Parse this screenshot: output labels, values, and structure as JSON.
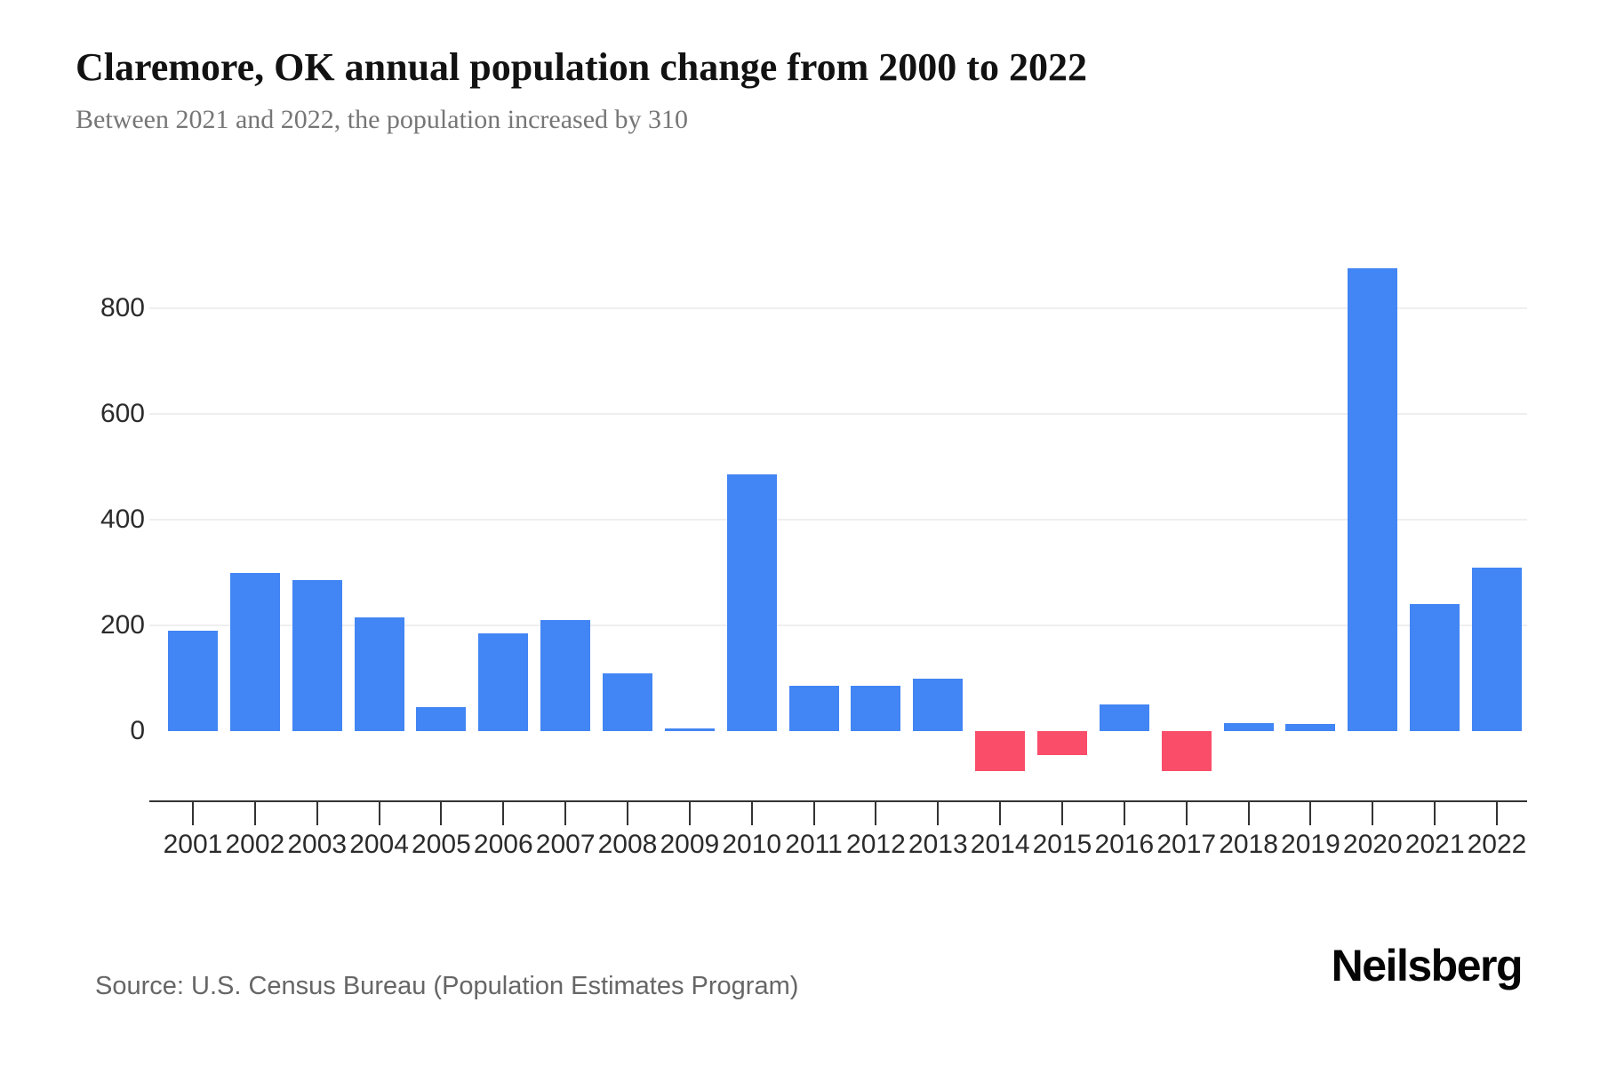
{
  "header": {
    "title": "Claremore, OK annual population change from 2000 to 2022",
    "subtitle": "Between 2021 and 2022, the population increased by 310"
  },
  "footer": {
    "source": "Source: U.S. Census Bureau (Population Estimates Program)",
    "brand": "Neilsberg"
  },
  "chart_data": {
    "type": "bar",
    "title": "Claremore, OK annual population change from 2000 to 2022",
    "subtitle": "Between 2021 and 2022, the population increased by 310",
    "categories": [
      "2001",
      "2002",
      "2003",
      "2004",
      "2005",
      "2006",
      "2007",
      "2008",
      "2009",
      "2010",
      "2011",
      "2012",
      "2013",
      "2014",
      "2015",
      "2016",
      "2017",
      "2018",
      "2019",
      "2020",
      "2021",
      "2022"
    ],
    "values": [
      190,
      300,
      285,
      215,
      45,
      185,
      210,
      110,
      5,
      485,
      85,
      85,
      100,
      -75,
      -45,
      50,
      -75,
      15,
      13,
      875,
      240,
      310
    ],
    "xlabel": "",
    "ylabel": "",
    "yticks": [
      0,
      200,
      400,
      600,
      800
    ],
    "ylim": [
      -135,
      915
    ],
    "grid": "horizontal only, hidden at zero",
    "legend": "none",
    "colors": {
      "positive": "#4285f4",
      "negative": "#f94d69",
      "grid": "#efefef",
      "axis": "#333333",
      "tick_text": "#2b2b2b"
    }
  }
}
